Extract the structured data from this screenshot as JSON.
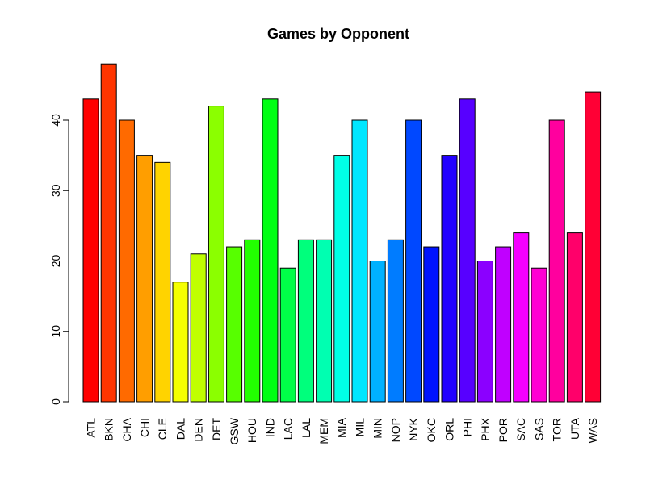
{
  "chart_data": {
    "type": "bar",
    "title": "Games by Opponent",
    "xlabel": "",
    "ylabel": "",
    "ylim": [
      0,
      50
    ],
    "yticks": [
      0,
      10,
      20,
      30,
      40
    ],
    "categories": [
      "ATL",
      "BKN",
      "CHA",
      "CHI",
      "CLE",
      "DAL",
      "DEN",
      "DET",
      "GSW",
      "HOU",
      "IND",
      "LAC",
      "LAL",
      "MEM",
      "MIA",
      "MIL",
      "MIN",
      "NOP",
      "NYK",
      "OKC",
      "ORL",
      "PHI",
      "PHX",
      "POR",
      "SAC",
      "SAS",
      "TOR",
      "UTA",
      "WAS"
    ],
    "values": [
      43,
      48,
      40,
      35,
      34,
      17,
      21,
      42,
      22,
      23,
      43,
      19,
      23,
      23,
      35,
      40,
      20,
      23,
      40,
      22,
      35,
      43,
      20,
      22,
      24,
      19,
      40,
      24,
      44
    ],
    "colors": [
      "#FF0000",
      "#FF3500",
      "#FF6A00",
      "#FF9E00",
      "#FFD300",
      "#F5FF00",
      "#C0FF00",
      "#8BFF00",
      "#57FF00",
      "#22FF00",
      "#00FF13",
      "#00FF48",
      "#00FF7C",
      "#00FFB1",
      "#00FFE6",
      "#00E6FF",
      "#00B1FF",
      "#007CFF",
      "#0048FF",
      "#0013FF",
      "#2200FF",
      "#5700FF",
      "#8B00FF",
      "#C000FF",
      "#F500FF",
      "#FF00D3",
      "#FF009E",
      "#FF006A",
      "#FF0035"
    ],
    "grid": false,
    "legend": "none"
  }
}
